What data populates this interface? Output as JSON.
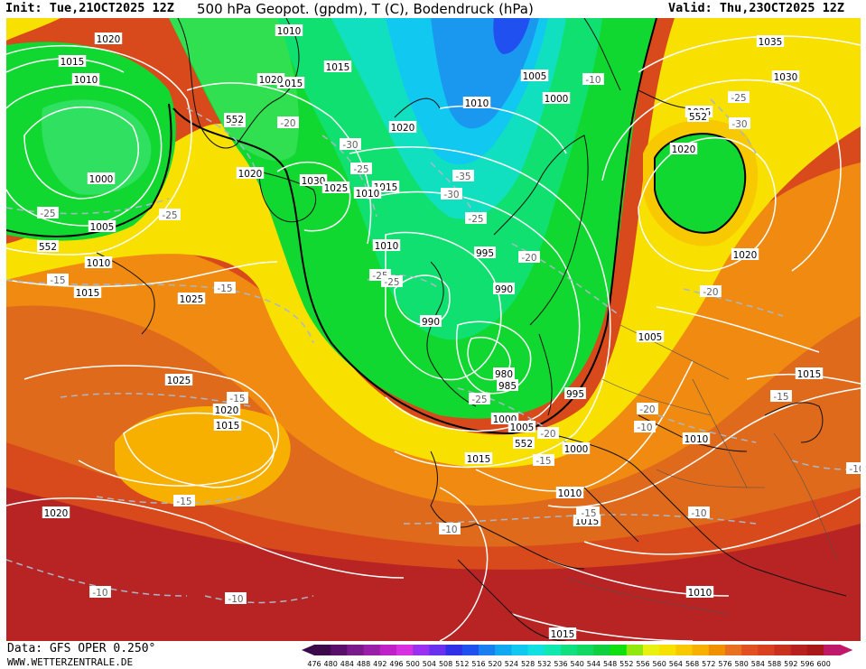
{
  "header": {
    "init": "Init: Tue,21OCT2025 12Z",
    "title": "500 hPa Geopot. (gpdm), T (C), Bodendruck (hPa)",
    "valid": "Valid: Thu,23OCT2025 12Z"
  },
  "footer": {
    "data": "Data: GFS OPER 0.250°",
    "site": "WWW.WETTERZENTRALE.DE"
  },
  "legend": {
    "ticks": [
      "476",
      "480",
      "484",
      "488",
      "492",
      "496",
      "500",
      "504",
      "508",
      "512",
      "516",
      "520",
      "524",
      "528",
      "532",
      "536",
      "540",
      "544",
      "548",
      "552",
      "556",
      "560",
      "564",
      "568",
      "572",
      "576",
      "580",
      "584",
      "588",
      "592",
      "596",
      "600"
    ],
    "colors": [
      "#3a0a4a",
      "#5a0f6a",
      "#7a1a8a",
      "#9a1fa8",
      "#c020c8",
      "#d630e0",
      "#9a30f0",
      "#6a30f0",
      "#3030e8",
      "#2050f0",
      "#1a80f0",
      "#10a8f0",
      "#10c8f0",
      "#10e0e0",
      "#10e8b0",
      "#10e080",
      "#10d860",
      "#10d040",
      "#10e010",
      "#90e810",
      "#e8f010",
      "#f8e000",
      "#f8c800",
      "#f8b000",
      "#f09000",
      "#e87020",
      "#e05020",
      "#d84020",
      "#c83020",
      "#b82020",
      "#a81818",
      "#c0186a"
    ]
  },
  "isobar_labels": [
    {
      "t": "1020"
    },
    {
      "t": "1015"
    },
    {
      "t": "1010"
    },
    {
      "t": "1000"
    },
    {
      "t": "1005"
    },
    {
      "t": "1010"
    },
    {
      "t": "1015"
    },
    {
      "t": "1025"
    },
    {
      "t": "1020"
    },
    {
      "t": "1015"
    },
    {
      "t": "1020"
    },
    {
      "t": "1025"
    },
    {
      "t": "1020"
    },
    {
      "t": "1015"
    },
    {
      "t": "1010"
    },
    {
      "t": "1015"
    },
    {
      "t": "1020"
    },
    {
      "t": "1030"
    },
    {
      "t": "1025"
    },
    {
      "t": "1015"
    },
    {
      "t": "1010"
    },
    {
      "t": "1020"
    },
    {
      "t": "1010"
    },
    {
      "t": "1005"
    },
    {
      "t": "1000"
    },
    {
      "t": "995"
    },
    {
      "t": "990"
    },
    {
      "t": "990"
    },
    {
      "t": "985"
    },
    {
      "t": "980"
    },
    {
      "t": "995"
    },
    {
      "t": "1000"
    },
    {
      "t": "1005"
    },
    {
      "t": "1000"
    },
    {
      "t": "1015"
    },
    {
      "t": "1010"
    },
    {
      "t": "1015"
    },
    {
      "t": "1010"
    },
    {
      "t": "1005"
    },
    {
      "t": "1015"
    },
    {
      "t": "1010"
    },
    {
      "t": "1015"
    },
    {
      "t": "1035"
    },
    {
      "t": "1030"
    },
    {
      "t": "1025"
    },
    {
      "t": "1020"
    },
    {
      "t": "1020"
    },
    {
      "t": "1010"
    }
  ],
  "temp_labels": [
    {
      "t": "-25"
    },
    {
      "t": "-25"
    },
    {
      "t": "-20"
    },
    {
      "t": "-15"
    },
    {
      "t": "-15"
    },
    {
      "t": "-15"
    },
    {
      "t": "-15"
    },
    {
      "t": "-20"
    },
    {
      "t": "-30"
    },
    {
      "t": "-25"
    },
    {
      "t": "-35"
    },
    {
      "t": "-30"
    },
    {
      "t": "-25"
    },
    {
      "t": "-20"
    },
    {
      "t": "-25"
    },
    {
      "t": "-25"
    },
    {
      "t": "-20"
    },
    {
      "t": "-15"
    },
    {
      "t": "-25"
    },
    {
      "t": "-20"
    },
    {
      "t": "-15"
    },
    {
      "t": "-20"
    },
    {
      "t": "-15"
    },
    {
      "t": "-10"
    },
    {
      "t": "-10"
    },
    {
      "t": "-10"
    },
    {
      "t": "-10"
    },
    {
      "t": "-10"
    },
    {
      "t": "-10"
    },
    {
      "t": "-25"
    },
    {
      "t": "-30"
    },
    {
      "t": "-15"
    },
    {
      "t": "-10"
    }
  ],
  "geo_labels": [
    {
      "t": "552"
    },
    {
      "t": "552"
    },
    {
      "t": "552"
    },
    {
      "t": "552"
    }
  ]
}
